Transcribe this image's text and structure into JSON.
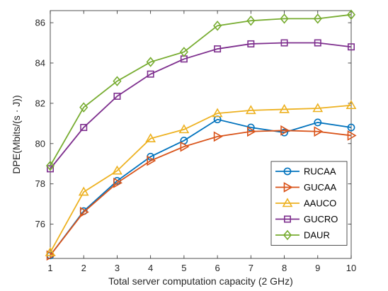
{
  "chart_data": {
    "type": "line",
    "title": "",
    "xlabel": "Total server computation capacity (2 GHz)",
    "ylabel": "DPE(Mbits/(s · J))",
    "x": [
      1,
      2,
      3,
      4,
      5,
      6,
      7,
      8,
      9,
      10
    ],
    "xlim": [
      1,
      10
    ],
    "ylim": [
      74.3,
      86.6
    ],
    "xticks": [
      "1",
      "2",
      "3",
      "4",
      "5",
      "6",
      "7",
      "8",
      "9",
      "10"
    ],
    "yticks": [
      "76",
      "78",
      "80",
      "82",
      "84",
      "86"
    ],
    "ytick_values": [
      76,
      78,
      80,
      82,
      84,
      86
    ],
    "grid": false,
    "legend_position": "lower-right",
    "series": [
      {
        "name": "RUCAA",
        "color": "#0072BD",
        "marker": "circle",
        "values": [
          74.45,
          76.65,
          78.15,
          79.35,
          80.15,
          81.2,
          80.8,
          80.55,
          81.05,
          80.8
        ]
      },
      {
        "name": "GUCAA",
        "color": "#D95319",
        "marker": "triangle-right",
        "values": [
          74.45,
          76.6,
          78.05,
          79.15,
          79.85,
          80.35,
          80.6,
          80.65,
          80.6,
          80.4
        ]
      },
      {
        "name": "AAUCO",
        "color": "#EDB120",
        "marker": "triangle-up",
        "values": [
          74.6,
          77.6,
          78.65,
          80.25,
          80.7,
          81.5,
          81.65,
          81.7,
          81.75,
          81.9
        ]
      },
      {
        "name": "GUCRO",
        "color": "#7E2F8E",
        "marker": "square",
        "values": [
          78.75,
          80.8,
          82.35,
          83.45,
          84.2,
          84.7,
          84.95,
          85.0,
          85.0,
          84.8
        ]
      },
      {
        "name": "DAUR",
        "color": "#77AC30",
        "marker": "diamond",
        "values": [
          78.9,
          81.8,
          83.1,
          84.05,
          84.55,
          85.85,
          86.1,
          86.2,
          86.2,
          86.4
        ]
      }
    ]
  }
}
